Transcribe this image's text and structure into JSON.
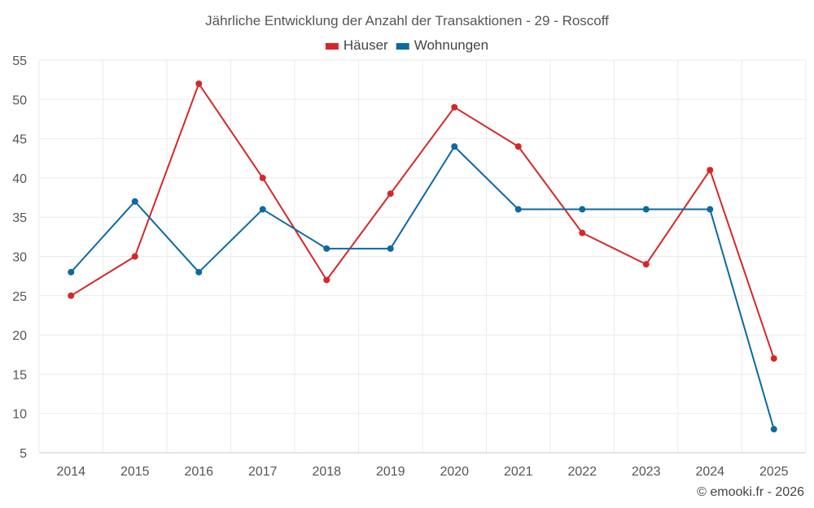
{
  "chart_data": {
    "type": "line",
    "title": "Jährliche Entwicklung der Anzahl der Transaktionen - 29 - Roscoff",
    "categories": [
      "2014",
      "2015",
      "2016",
      "2017",
      "2018",
      "2019",
      "2020",
      "2021",
      "2022",
      "2023",
      "2024",
      "2025"
    ],
    "series": [
      {
        "name": "Häuser",
        "color": "#d62728",
        "values": [
          25,
          30,
          52,
          40,
          27,
          38,
          49,
          44,
          33,
          29,
          41,
          17
        ]
      },
      {
        "name": "Wohnungen",
        "color": "#0a6aa1",
        "values": [
          28,
          37,
          28,
          36,
          31,
          31,
          44,
          36,
          36,
          36,
          36,
          8
        ]
      }
    ],
    "ylim": [
      5,
      55
    ],
    "yticks": [
      5,
      10,
      15,
      20,
      25,
      30,
      35,
      40,
      45,
      50,
      55
    ],
    "legend_position": "top-center",
    "grid": true,
    "credit": "© emooki.fr - 2026"
  }
}
